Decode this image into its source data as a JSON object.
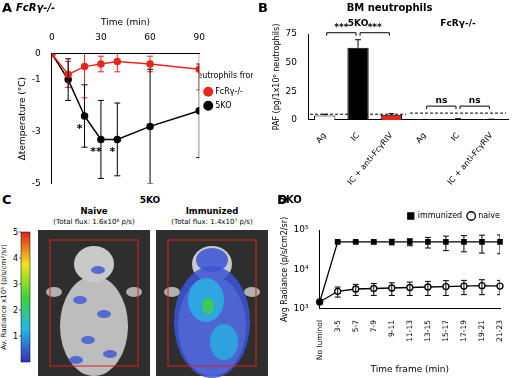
{
  "chart_data": [
    {
      "type": "line",
      "panel": "A",
      "title": "FcRγ-/-",
      "x_label": "Time (min)",
      "y_label": "Δtemperature (°C)",
      "x": [
        0,
        10,
        20,
        30,
        40,
        60,
        90
      ],
      "xlim": [
        0,
        90
      ],
      "xticks": [
        0,
        30,
        60,
        90
      ],
      "ylim": [
        -5,
        0
      ],
      "yticks": [
        -5,
        -3,
        -1,
        0
      ],
      "grid": false,
      "legend": "right",
      "legend_title": "Neutrophils from:",
      "series": [
        {
          "name": "FcRγ-/-",
          "color": "#e8261c",
          "marker": "circle",
          "line_style": "solid",
          "values": [
            0,
            -0.8,
            -0.5,
            -0.4,
            -0.3,
            -0.4,
            -0.6
          ],
          "errors": [
            0,
            0.5,
            1.2,
            0.3,
            0.4,
            0.3,
            0.8
          ]
        },
        {
          "name": "5KO",
          "color": "#000000",
          "marker": "circle",
          "line_style": "solid",
          "values": [
            0,
            -1,
            -2.4,
            -3.3,
            -3.3,
            -2.8,
            -2.2
          ],
          "errors": [
            0,
            0.8,
            1.2,
            1.5,
            1.4,
            2.2,
            1.8
          ]
        }
      ],
      "annotations": [
        {
          "x": 17,
          "y": -2.9,
          "text": "*"
        },
        {
          "x": 27,
          "y": -3.8,
          "text": "**"
        },
        {
          "x": 37,
          "y": -3.8,
          "text": "*"
        }
      ]
    },
    {
      "type": "bar",
      "panel": "B",
      "title": "BM neutrophils",
      "y_label": "PAF (pg/1x10⁶ neutrophils)",
      "categories": [
        "Ag",
        "IC",
        "IC + anti-FcγRIV",
        "Ag",
        "IC",
        "IC + anti-FcγRIV"
      ],
      "values": [
        4,
        63,
        4.5,
        0.3,
        0.8,
        0.5
      ],
      "errors": [
        1,
        7,
        1,
        0.2,
        0.3,
        0.2
      ],
      "colors": [
        "#ffffff",
        "#000000",
        "#e8261c",
        "#ffffff",
        "#000000",
        "#e8261c"
      ],
      "ylim": [
        0,
        75
      ],
      "yticks": [
        0,
        25,
        50,
        75
      ],
      "grid": false,
      "groups": [
        {
          "name": "5KO",
          "from": 0,
          "to": 2
        },
        {
          "name": "FcRγ-/-",
          "from": 3,
          "to": 5
        }
      ],
      "reference_lines": [
        {
          "from": 0,
          "to": 2,
          "value": 5
        },
        {
          "from": 3,
          "to": 5,
          "value": 6
        }
      ],
      "significance": [
        {
          "from": 0,
          "to": 1,
          "label": "***"
        },
        {
          "from": 1,
          "to": 2,
          "label": "***"
        },
        {
          "from": 3,
          "to": 4,
          "label": "ns"
        },
        {
          "from": 4,
          "to": 5,
          "label": "ns"
        }
      ]
    },
    {
      "type": "image",
      "panel": "C",
      "title": "5KO",
      "images": [
        {
          "label": "Naive",
          "caption": "(Total flux: 1.6x10⁶ p/s)"
        },
        {
          "label": "Immunized",
          "caption": "(Total flux: 1.4x10⁷ p/s)"
        }
      ],
      "colorbar_label": "Av. Radiance x10⁵ (p/s/cm²/sr)",
      "colorbar_range": [
        0,
        5
      ],
      "colorbar_ticks": [
        1,
        2,
        3,
        4,
        5
      ]
    },
    {
      "type": "line",
      "panel": "D",
      "title": "5KO",
      "x_label": "Time frame (min)",
      "y_label": "Avg Radiance (p/s/cm2/sr)",
      "categories": [
        "No luminol",
        "3-5",
        "5-7",
        "7-9",
        "9-11",
        "11-13",
        "13-15",
        "15-17",
        "17-19",
        "19-21",
        "21-23"
      ],
      "log": "y",
      "ylim": [
        1000,
        100000
      ],
      "yticks": [
        {
          "value": 1000,
          "label": "10³"
        },
        {
          "value": 10000,
          "label": "10⁴"
        },
        {
          "value": 100000,
          "label": "10⁵"
        }
      ],
      "grid": false,
      "legend": "top-right",
      "series": [
        {
          "name": "immunized",
          "color": "#000000",
          "marker": "square",
          "line_style": "solid",
          "values": [
            1500,
            50000,
            50000,
            50000,
            50000,
            50000,
            50000,
            50000,
            50000,
            50000,
            50000
          ],
          "errors": [
            0,
            3000,
            3000,
            5000,
            8000,
            10000,
            15000,
            20000,
            22000,
            24000,
            25000
          ]
        },
        {
          "name": "naive",
          "color": "#000000",
          "marker": "open-circle",
          "line_style": "solid",
          "values": [
            1500,
            2800,
            3200,
            3300,
            3400,
            3500,
            3600,
            3700,
            3800,
            3900,
            3800
          ],
          "errors": [
            0,
            800,
            1000,
            1100,
            1200,
            1300,
            1400,
            1500,
            1500,
            1600,
            1500
          ]
        }
      ]
    }
  ]
}
